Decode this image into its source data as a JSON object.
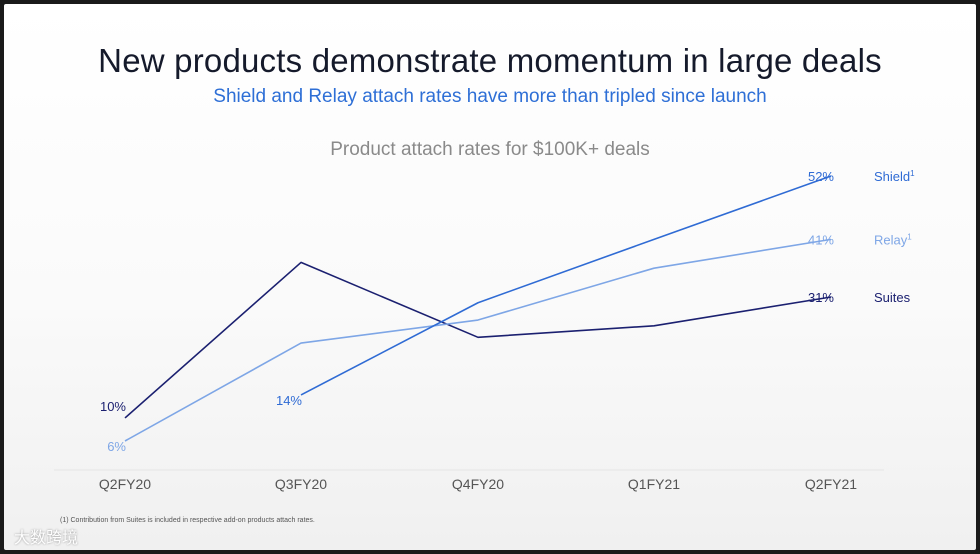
{
  "slide": {
    "title": "New products demonstrate momentum in large deals",
    "subtitle": "Shield and Relay attach rates have more than tripled since launch",
    "footnote": "(1) Contribution from Suites is included in respective add-on products attach rates.",
    "watermark": "大数跨境"
  },
  "chart_data": {
    "type": "line",
    "title": "Product attach rates for $100K+ deals",
    "xlabel": "",
    "ylabel": "",
    "ylim": [
      0,
      60
    ],
    "grid": false,
    "legend": "none",
    "categories": [
      "Q2FY20",
      "Q3FY20",
      "Q4FY20",
      "Q1FY21",
      "Q2FY21"
    ],
    "series": [
      {
        "name": "Suites",
        "color": "#1b2070",
        "values": [
          10,
          37,
          24,
          26,
          31
        ],
        "labels": {
          "0": "10%",
          "4": "31%"
        },
        "end_label": "Suites",
        "end_sup": ""
      },
      {
        "name": "Relay",
        "color": "#7ea6e6",
        "values": [
          6,
          23,
          27,
          36,
          41
        ],
        "labels": {
          "0": "6%",
          "4": "41%"
        },
        "end_label": "Relay",
        "end_sup": "1"
      },
      {
        "name": "Shield",
        "color": "#2f6bd4",
        "values": [
          null,
          14,
          30,
          41,
          52
        ],
        "labels": {
          "1": "14%",
          "4": "52%"
        },
        "end_label": "Shield",
        "end_sup": "1"
      }
    ]
  }
}
